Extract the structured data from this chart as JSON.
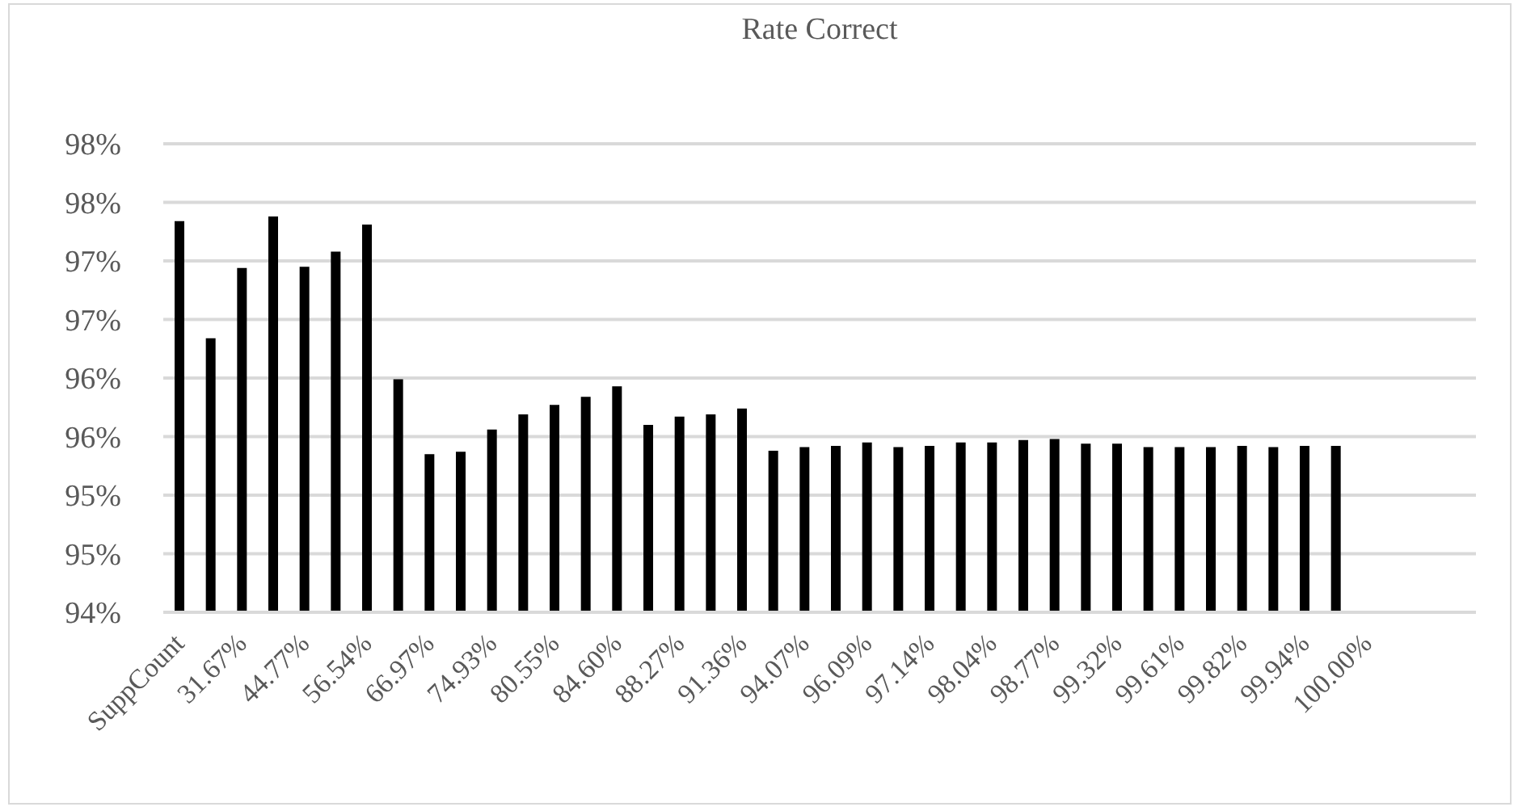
{
  "chart_data": {
    "type": "bar",
    "title": "Rate Correct",
    "categories": [
      "SuppCount",
      null,
      "31.67%",
      null,
      "44.77%",
      null,
      "56.54%",
      null,
      "66.97%",
      null,
      "74.93%",
      null,
      "80.55%",
      null,
      "84.60%",
      null,
      "88.27%",
      null,
      "91.36%",
      null,
      "94.07%",
      null,
      "96.09%",
      null,
      "97.14%",
      null,
      "98.04%",
      null,
      "98.77%",
      null,
      "99.32%",
      null,
      "99.61%",
      null,
      "99.82%",
      null,
      "99.94%",
      null,
      "100.00%",
      null,
      null,
      null
    ],
    "values": [
      97.34,
      96.34,
      96.94,
      97.38,
      96.95,
      97.08,
      97.31,
      95.99,
      95.35,
      95.37,
      95.56,
      95.69,
      95.77,
      95.84,
      95.93,
      95.6,
      95.67,
      95.69,
      95.74,
      95.38,
      95.41,
      95.42,
      95.45,
      95.41,
      95.42,
      95.45,
      95.45,
      95.47,
      95.48,
      95.44,
      95.44,
      95.41,
      95.41,
      95.41,
      95.42,
      95.41,
      95.42,
      95.42,
      null,
      null,
      null,
      null
    ],
    "color": "#000000",
    "ylim": [
      94,
      98
    ],
    "yticks": [
      {
        "value": 94,
        "label": "94%"
      },
      {
        "value": 94.5,
        "label": "95%"
      },
      {
        "value": 95,
        "label": "95%"
      },
      {
        "value": 95.5,
        "label": "96%"
      },
      {
        "value": 96,
        "label": "96%"
      },
      {
        "value": 96.5,
        "label": "97%"
      },
      {
        "value": 97,
        "label": "97%"
      },
      {
        "value": 97.5,
        "label": "98%"
      },
      {
        "value": 98,
        "label": "98%"
      }
    ],
    "grid": "y"
  }
}
